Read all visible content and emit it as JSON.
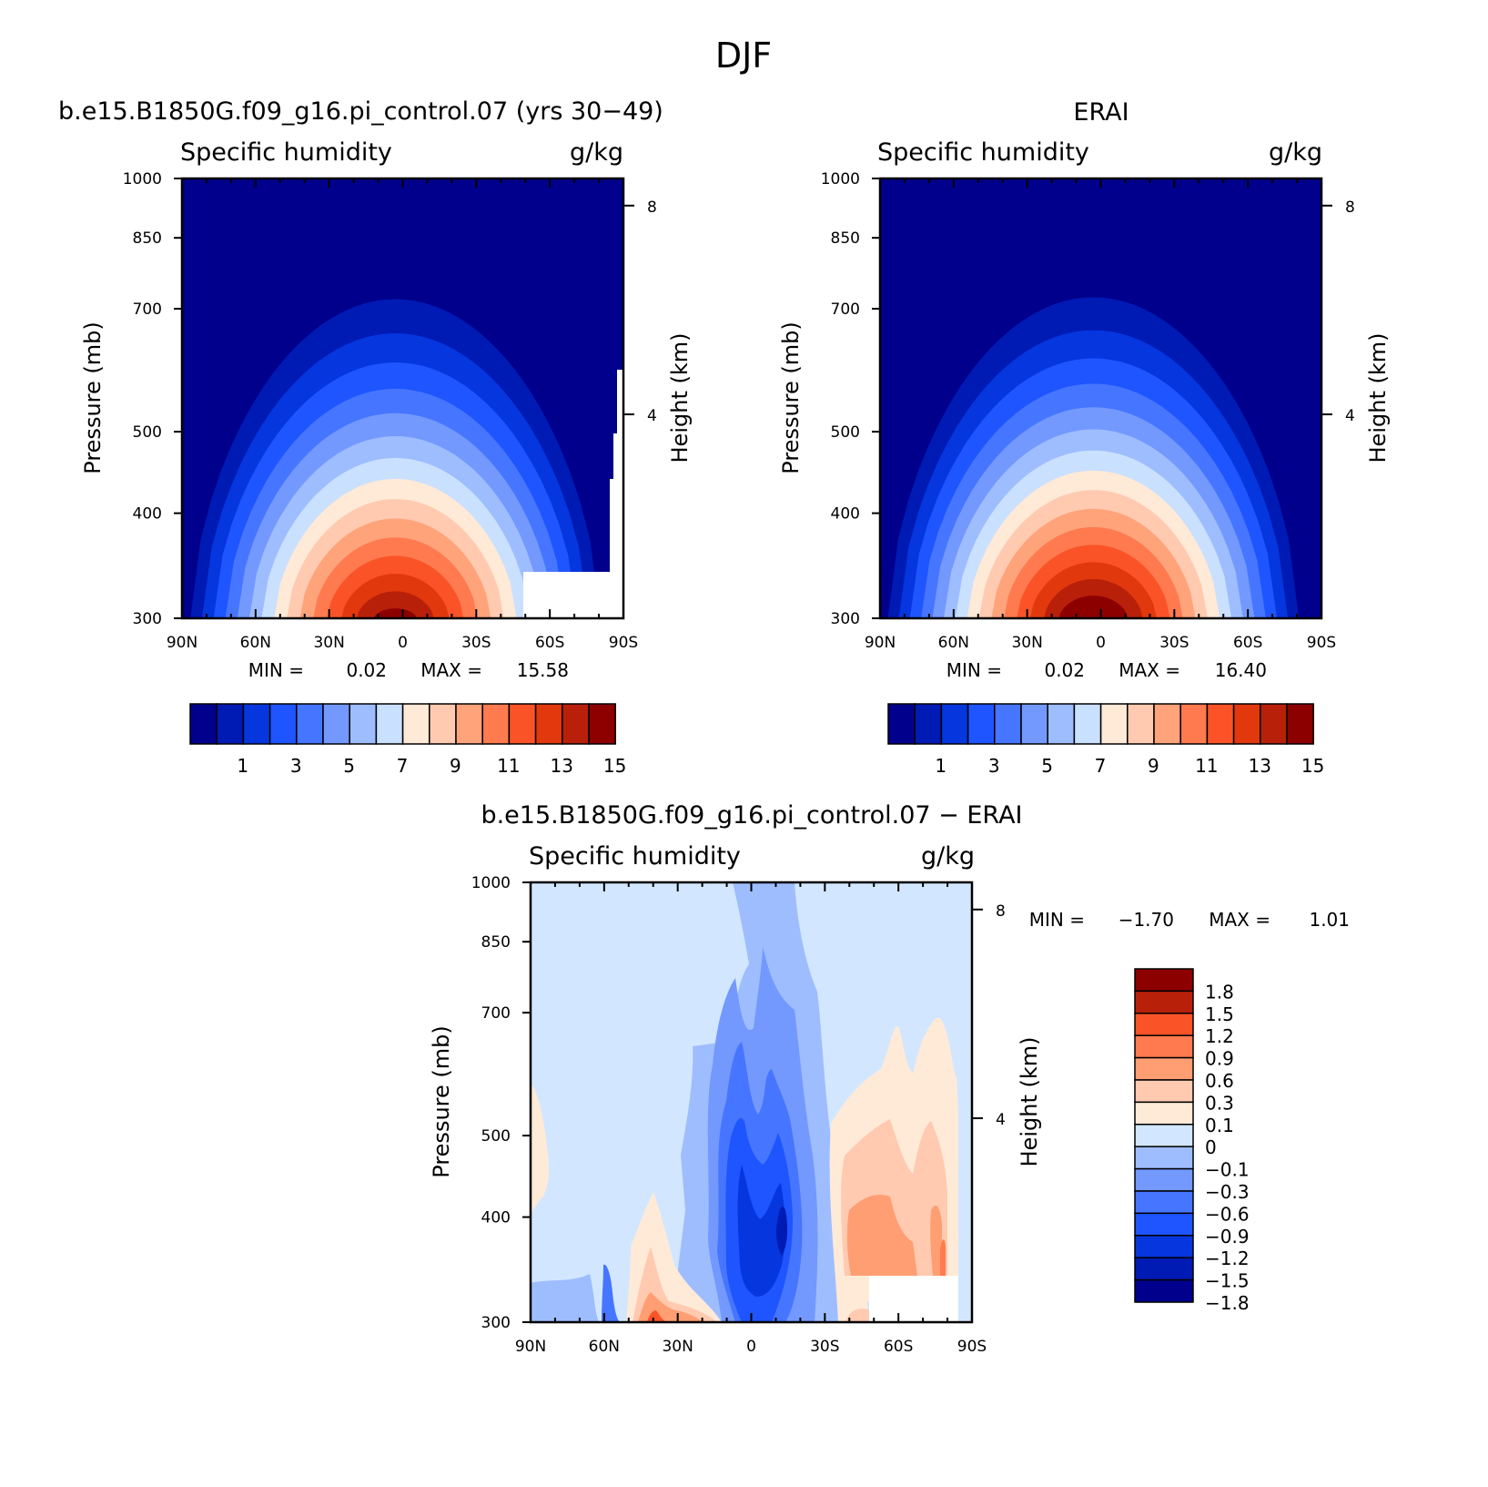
{
  "figure": {
    "title": "DJF"
  },
  "colors": {
    "abs_levels": [
      "#00008c",
      "#001ab4",
      "#0536de",
      "#1e55ff",
      "#4675ff",
      "#7399ff",
      "#9ebdff",
      "#c9e0ff",
      "#ffe9d7",
      "#ffcab0",
      "#ffa37b",
      "#ff7a4f",
      "#fa5328",
      "#e2380e",
      "#b9200a",
      "#8c0000"
    ],
    "diff_levels": [
      "#00008c",
      "#001ab4",
      "#0536de",
      "#1e55ff",
      "#4675ff",
      "#7399ff",
      "#9ebdff",
      "#d2e7ff",
      "#ffead8",
      "#ffcab0",
      "#ff9e73",
      "#ff7a4f",
      "#fa5328",
      "#b9200a",
      "#8c0000"
    ]
  },
  "chart_data": [
    {
      "type": "heatmap",
      "title": "b.e15.B1850G.f09_g16.pi_control.07 (yrs 30−49)",
      "left_label": "Specific humidity",
      "right_label": "g/kg",
      "xlabel": "",
      "ylabel": "Pressure (mb)",
      "y2label": "Height (km)",
      "x_ticks": [
        "90N",
        "60N",
        "30N",
        "0",
        "30S",
        "60S",
        "90S"
      ],
      "y_ticks": [
        "300",
        "400",
        "500",
        "700",
        "850",
        "1000"
      ],
      "y2_ticks": [
        "8",
        "4"
      ],
      "min_label": "MIN =",
      "min": "0.02",
      "max_label": "MAX =",
      "max": "15.58",
      "contour_levels": [
        0.5,
        1,
        2,
        3,
        4,
        5,
        6,
        7,
        8,
        9,
        10,
        11,
        12,
        13,
        14,
        15
      ],
      "colorbar_labels": [
        "1",
        "3",
        "5",
        "7",
        "9",
        "11",
        "13",
        "15"
      ],
      "peak": {
        "lat": 3,
        "value": 15.58
      }
    },
    {
      "type": "heatmap",
      "title": "ERAI",
      "left_label": "Specific humidity",
      "right_label": "g/kg",
      "xlabel": "",
      "ylabel": "Pressure (mb)",
      "y2label": "Height (km)",
      "x_ticks": [
        "90N",
        "60N",
        "30N",
        "0",
        "30S",
        "60S",
        "90S"
      ],
      "y_ticks": [
        "300",
        "400",
        "500",
        "700",
        "850",
        "1000"
      ],
      "y2_ticks": [
        "8",
        "4"
      ],
      "min_label": "MIN =",
      "min": "0.02",
      "max_label": "MAX =",
      "max": "16.40",
      "contour_levels": [
        0.5,
        1,
        2,
        3,
        4,
        5,
        6,
        7,
        8,
        9,
        10,
        11,
        12,
        13,
        14,
        15
      ],
      "colorbar_labels": [
        "1",
        "3",
        "5",
        "7",
        "9",
        "11",
        "13",
        "15"
      ],
      "peak": {
        "lat": 3,
        "value": 16.4
      }
    },
    {
      "type": "heatmap",
      "title": "b.e15.B1850G.f09_g16.pi_control.07 − ERAI",
      "left_label": "Specific humidity",
      "right_label": "g/kg",
      "xlabel": "",
      "ylabel": "Pressure (mb)",
      "y2label": "Height (km)",
      "x_ticks": [
        "90N",
        "60N",
        "30N",
        "0",
        "30S",
        "60S",
        "90S"
      ],
      "y_ticks": [
        "300",
        "400",
        "500",
        "700",
        "850",
        "1000"
      ],
      "y2_ticks": [
        "8",
        "4"
      ],
      "min_label": "MIN =",
      "min": "−1.70",
      "max_label": "MAX =",
      "max": "1.01",
      "contour_levels": [
        -1.8,
        -1.5,
        -1.2,
        -0.9,
        -0.6,
        -0.3,
        -0.1,
        0,
        0.1,
        0.3,
        0.6,
        0.9,
        1.2,
        1.5,
        1.8
      ],
      "colorbar_labels": [
        "1.8",
        "1.5",
        "1.2",
        "0.9",
        "0.6",
        "0.3",
        "0.1",
        "0",
        "−0.1",
        "−0.3",
        "−0.6",
        "−0.9",
        "−1.2",
        "−1.5",
        "−1.8"
      ]
    }
  ]
}
